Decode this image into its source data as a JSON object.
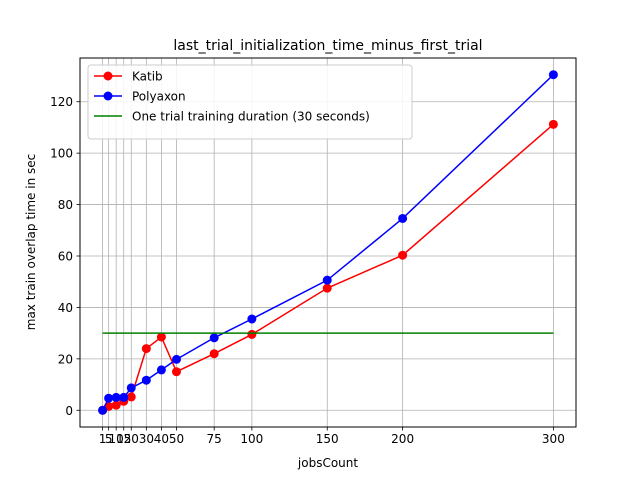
{
  "chart_data": {
    "type": "line",
    "title": "last_trial_initialization_time_minus_first_trial",
    "xlabel": "jobsCount",
    "ylabel": "max train overlap time in sec",
    "x": [
      1,
      5,
      10,
      15,
      20,
      30,
      40,
      50,
      75,
      100,
      150,
      200,
      300
    ],
    "xticks": [
      1,
      5,
      10,
      15,
      20,
      30,
      40,
      50,
      75,
      100,
      150,
      200,
      300
    ],
    "xtick_labels": [
      "1",
      "5",
      "10",
      "15",
      "20",
      "30",
      "40",
      "50",
      "75",
      "100",
      "150",
      "200",
      "300"
    ],
    "yticks": [
      0,
      20,
      40,
      60,
      80,
      100,
      120
    ],
    "ytick_labels": [
      "0",
      "20",
      "40",
      "60",
      "80",
      "100",
      "120"
    ],
    "xlim": [
      -14,
      315
    ],
    "ylim": [
      -6.5,
      137
    ],
    "grid": true,
    "legend_position": "top-left",
    "series": [
      {
        "name": "Katib",
        "color": "#ff0000",
        "marker": "circle",
        "values": [
          0,
          1.5,
          2,
          3.5,
          5.2,
          24,
          28.5,
          15,
          22,
          29.5,
          47.5,
          60.3,
          111.2
        ]
      },
      {
        "name": "Polyaxon",
        "color": "#0000ff",
        "marker": "circle",
        "values": [
          0,
          4.7,
          5,
          5,
          8.7,
          11.7,
          15.7,
          19.8,
          28.2,
          35.5,
          50.6,
          74.6,
          130.5
        ]
      },
      {
        "name": "One trial training duration (30 seconds)",
        "color": "#008000",
        "marker": "none",
        "x": [
          1,
          300
        ],
        "values": [
          30,
          30
        ]
      }
    ]
  }
}
